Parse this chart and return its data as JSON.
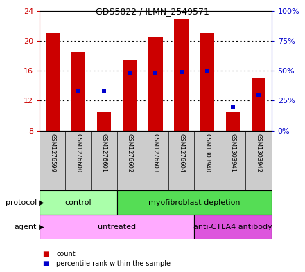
{
  "title": "GDS5822 / ILMN_2549571",
  "samples": [
    "GSM1276599",
    "GSM1276600",
    "GSM1276601",
    "GSM1276602",
    "GSM1276603",
    "GSM1276604",
    "GSM1303940",
    "GSM1303941",
    "GSM1303942"
  ],
  "counts": [
    21.0,
    18.5,
    10.5,
    17.5,
    20.5,
    23.0,
    21.0,
    10.5,
    15.0
  ],
  "percentile_ranks_pct": [
    null,
    33.0,
    33.0,
    48.0,
    48.0,
    49.0,
    50.0,
    20.0,
    30.0
  ],
  "bar_bottom": 8.0,
  "ylim_left": [
    8,
    24
  ],
  "ylim_right": [
    0,
    100
  ],
  "yticks_left": [
    8,
    12,
    16,
    20,
    24
  ],
  "ytick_labels_left": [
    "8",
    "12",
    "16",
    "20",
    "24"
  ],
  "yticks_right_pct": [
    0,
    25,
    50,
    75,
    100
  ],
  "ytick_labels_right": [
    "0%",
    "25%",
    "50%",
    "75%",
    "100%"
  ],
  "bar_color": "#cc0000",
  "dot_color": "#0000cc",
  "bar_width": 0.55,
  "protocol_groups": [
    {
      "label": "control",
      "start": 0,
      "end": 3,
      "color": "#aaffaa"
    },
    {
      "label": "myofibroblast depletion",
      "start": 3,
      "end": 9,
      "color": "#55dd55"
    }
  ],
  "agent_groups": [
    {
      "label": "untreated",
      "start": 0,
      "end": 6,
      "color": "#ffaaff"
    },
    {
      "label": "anti-CTLA4 antibody",
      "start": 6,
      "end": 9,
      "color": "#dd55dd"
    }
  ],
  "grid_color": "black",
  "protocol_label": "protocol",
  "agent_label": "agent",
  "legend_count_label": "count",
  "legend_percentile_label": "percentile rank within the sample",
  "background_color": "#ffffff",
  "plot_bg_color": "#ffffff",
  "label_area_color": "#cccccc"
}
